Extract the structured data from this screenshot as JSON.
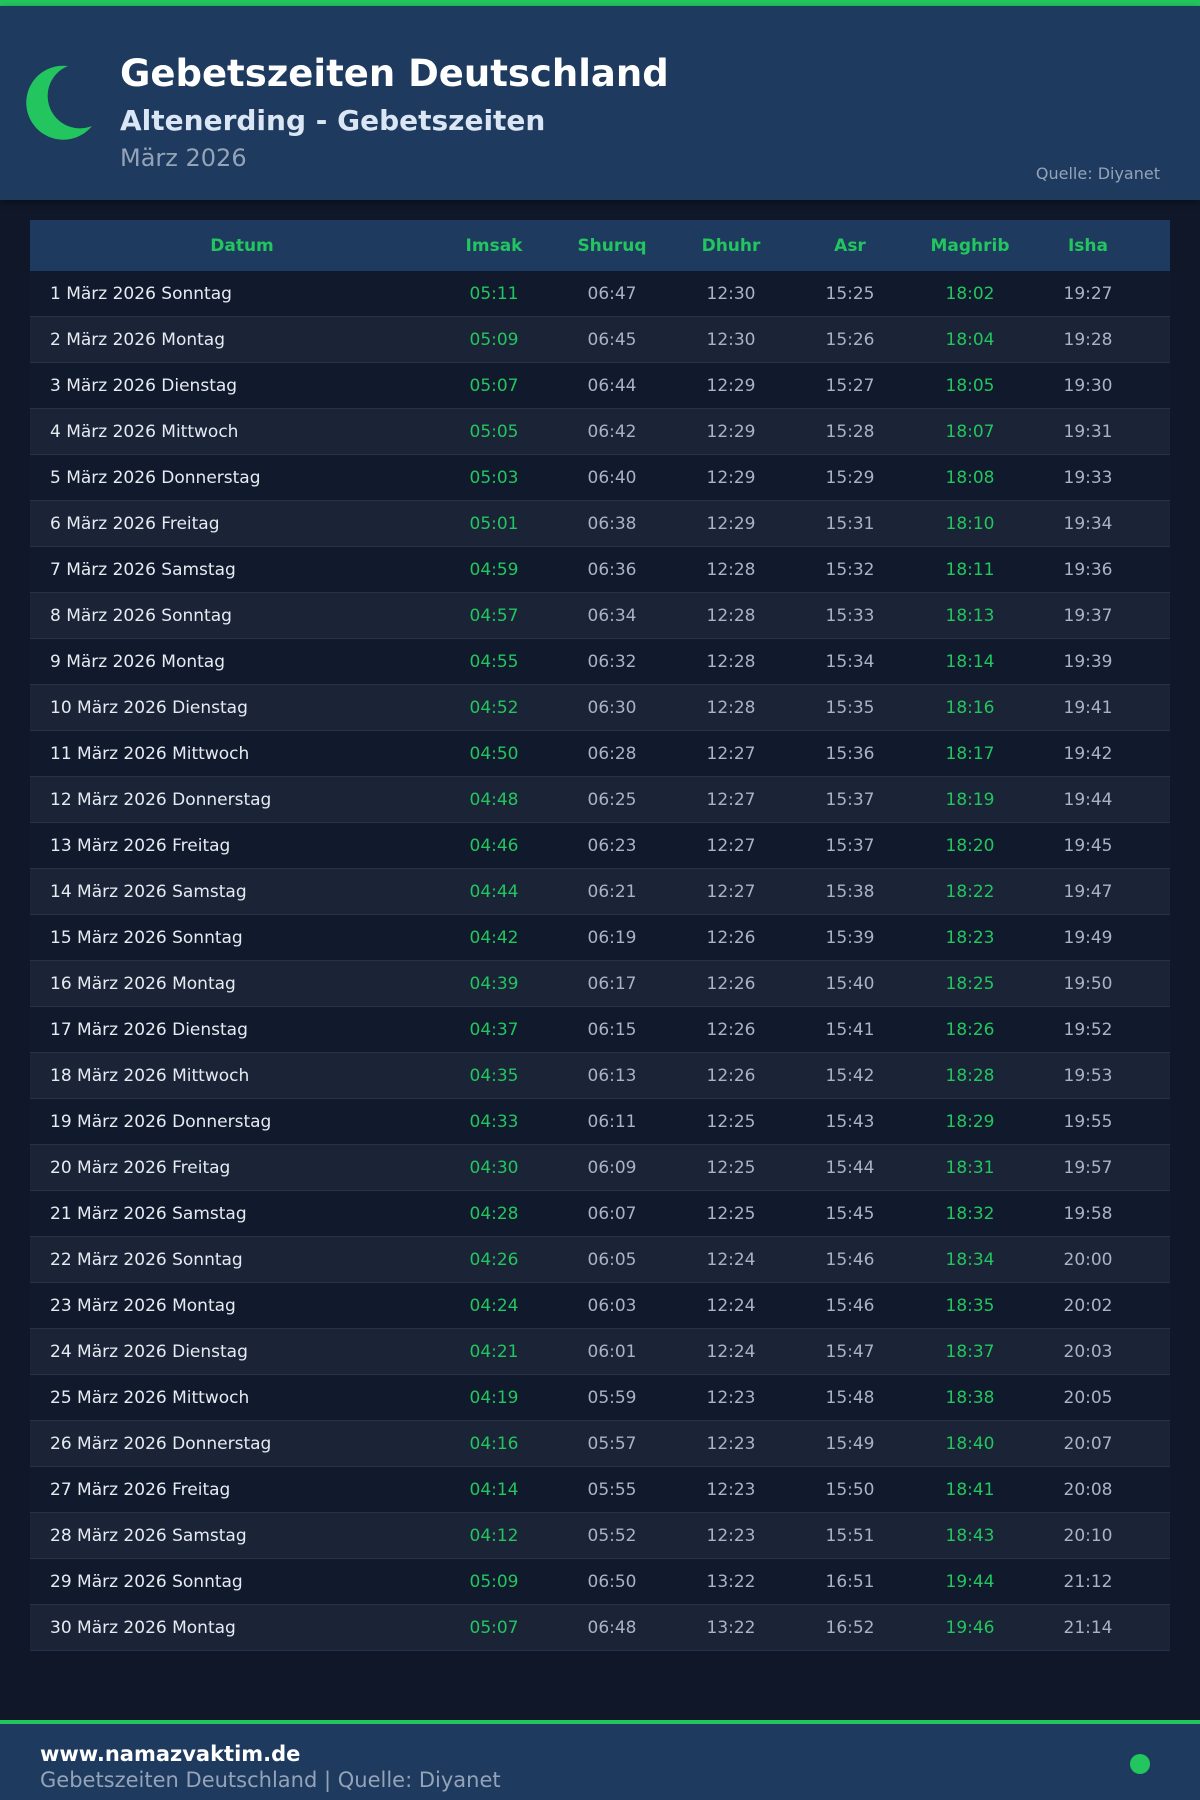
{
  "header": {
    "title": "Gebetszeiten Deutschland",
    "subtitle": "Altenerding - Gebetszeiten",
    "month": "März 2026",
    "source": "Quelle: Diyanet",
    "icon": "crescent-moon-icon"
  },
  "colors": {
    "accent": "#22c55e",
    "header_bg": "#1e3a5f",
    "page_bg": "#0f1729"
  },
  "table": {
    "columns": [
      "Datum",
      "Imsak",
      "Shuruq",
      "Dhuhr",
      "Asr",
      "Maghrib",
      "Isha"
    ],
    "rows": [
      [
        "1 März 2026 Sonntag",
        "05:11",
        "06:47",
        "12:30",
        "15:25",
        "18:02",
        "19:27"
      ],
      [
        "2 März 2026 Montag",
        "05:09",
        "06:45",
        "12:30",
        "15:26",
        "18:04",
        "19:28"
      ],
      [
        "3 März 2026 Dienstag",
        "05:07",
        "06:44",
        "12:29",
        "15:27",
        "18:05",
        "19:30"
      ],
      [
        "4 März 2026 Mittwoch",
        "05:05",
        "06:42",
        "12:29",
        "15:28",
        "18:07",
        "19:31"
      ],
      [
        "5 März 2026 Donnerstag",
        "05:03",
        "06:40",
        "12:29",
        "15:29",
        "18:08",
        "19:33"
      ],
      [
        "6 März 2026 Freitag",
        "05:01",
        "06:38",
        "12:29",
        "15:31",
        "18:10",
        "19:34"
      ],
      [
        "7 März 2026 Samstag",
        "04:59",
        "06:36",
        "12:28",
        "15:32",
        "18:11",
        "19:36"
      ],
      [
        "8 März 2026 Sonntag",
        "04:57",
        "06:34",
        "12:28",
        "15:33",
        "18:13",
        "19:37"
      ],
      [
        "9 März 2026 Montag",
        "04:55",
        "06:32",
        "12:28",
        "15:34",
        "18:14",
        "19:39"
      ],
      [
        "10 März 2026 Dienstag",
        "04:52",
        "06:30",
        "12:28",
        "15:35",
        "18:16",
        "19:41"
      ],
      [
        "11 März 2026 Mittwoch",
        "04:50",
        "06:28",
        "12:27",
        "15:36",
        "18:17",
        "19:42"
      ],
      [
        "12 März 2026 Donnerstag",
        "04:48",
        "06:25",
        "12:27",
        "15:37",
        "18:19",
        "19:44"
      ],
      [
        "13 März 2026 Freitag",
        "04:46",
        "06:23",
        "12:27",
        "15:37",
        "18:20",
        "19:45"
      ],
      [
        "14 März 2026 Samstag",
        "04:44",
        "06:21",
        "12:27",
        "15:38",
        "18:22",
        "19:47"
      ],
      [
        "15 März 2026 Sonntag",
        "04:42",
        "06:19",
        "12:26",
        "15:39",
        "18:23",
        "19:49"
      ],
      [
        "16 März 2026 Montag",
        "04:39",
        "06:17",
        "12:26",
        "15:40",
        "18:25",
        "19:50"
      ],
      [
        "17 März 2026 Dienstag",
        "04:37",
        "06:15",
        "12:26",
        "15:41",
        "18:26",
        "19:52"
      ],
      [
        "18 März 2026 Mittwoch",
        "04:35",
        "06:13",
        "12:26",
        "15:42",
        "18:28",
        "19:53"
      ],
      [
        "19 März 2026 Donnerstag",
        "04:33",
        "06:11",
        "12:25",
        "15:43",
        "18:29",
        "19:55"
      ],
      [
        "20 März 2026 Freitag",
        "04:30",
        "06:09",
        "12:25",
        "15:44",
        "18:31",
        "19:57"
      ],
      [
        "21 März 2026 Samstag",
        "04:28",
        "06:07",
        "12:25",
        "15:45",
        "18:32",
        "19:58"
      ],
      [
        "22 März 2026 Sonntag",
        "04:26",
        "06:05",
        "12:24",
        "15:46",
        "18:34",
        "20:00"
      ],
      [
        "23 März 2026 Montag",
        "04:24",
        "06:03",
        "12:24",
        "15:46",
        "18:35",
        "20:02"
      ],
      [
        "24 März 2026 Dienstag",
        "04:21",
        "06:01",
        "12:24",
        "15:47",
        "18:37",
        "20:03"
      ],
      [
        "25 März 2026 Mittwoch",
        "04:19",
        "05:59",
        "12:23",
        "15:48",
        "18:38",
        "20:05"
      ],
      [
        "26 März 2026 Donnerstag",
        "04:16",
        "05:57",
        "12:23",
        "15:49",
        "18:40",
        "20:07"
      ],
      [
        "27 März 2026 Freitag",
        "04:14",
        "05:55",
        "12:23",
        "15:50",
        "18:41",
        "20:08"
      ],
      [
        "28 März 2026 Samstag",
        "04:12",
        "05:52",
        "12:23",
        "15:51",
        "18:43",
        "20:10"
      ],
      [
        "29 März 2026 Sonntag",
        "05:09",
        "06:50",
        "13:22",
        "16:51",
        "19:44",
        "21:12"
      ],
      [
        "30 März 2026 Montag",
        "05:07",
        "06:48",
        "13:22",
        "16:52",
        "19:46",
        "21:14"
      ]
    ]
  },
  "footer": {
    "site": "www.namazvaktim.de",
    "text": "Gebetszeiten Deutschland | Quelle: Diyanet"
  }
}
